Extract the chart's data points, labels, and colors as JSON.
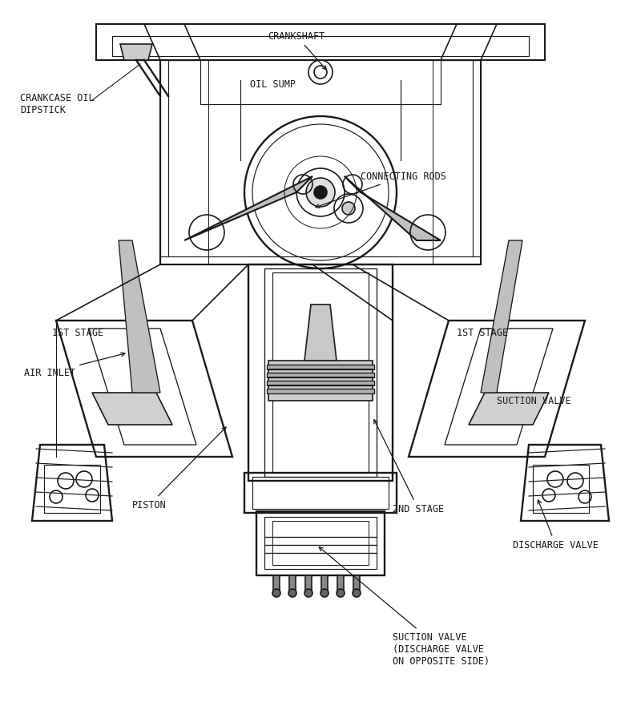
{
  "bg_color": "#ffffff",
  "line_color": "#1a1a1a",
  "title": "",
  "figsize": [
    8.0,
    8.96
  ],
  "dpi": 100,
  "labels": {
    "suction_valve_top": "SUCTION VALVE\n(DISCHARGE VALVE\nON OPPOSITE SIDE)",
    "piston": "PISTON",
    "2nd_stage": "2ND STAGE",
    "discharge_valve": "DISCHARGE VALVE",
    "air_inlet": "AIR INLET",
    "1st_stage_left": "1ST STAGE",
    "1st_stage_right": "1ST STAGE",
    "suction_valve_right": "SUCTION VALVE",
    "crankcase_oil": "CRANKCASE OIL\nDIPSTICK",
    "connecting_rods": "CONNECTING RODS",
    "oil_sump": "OIL SUMP",
    "crankshaft": "CRANKSHAFT"
  },
  "font_size": 8.5,
  "lw": 1.2
}
